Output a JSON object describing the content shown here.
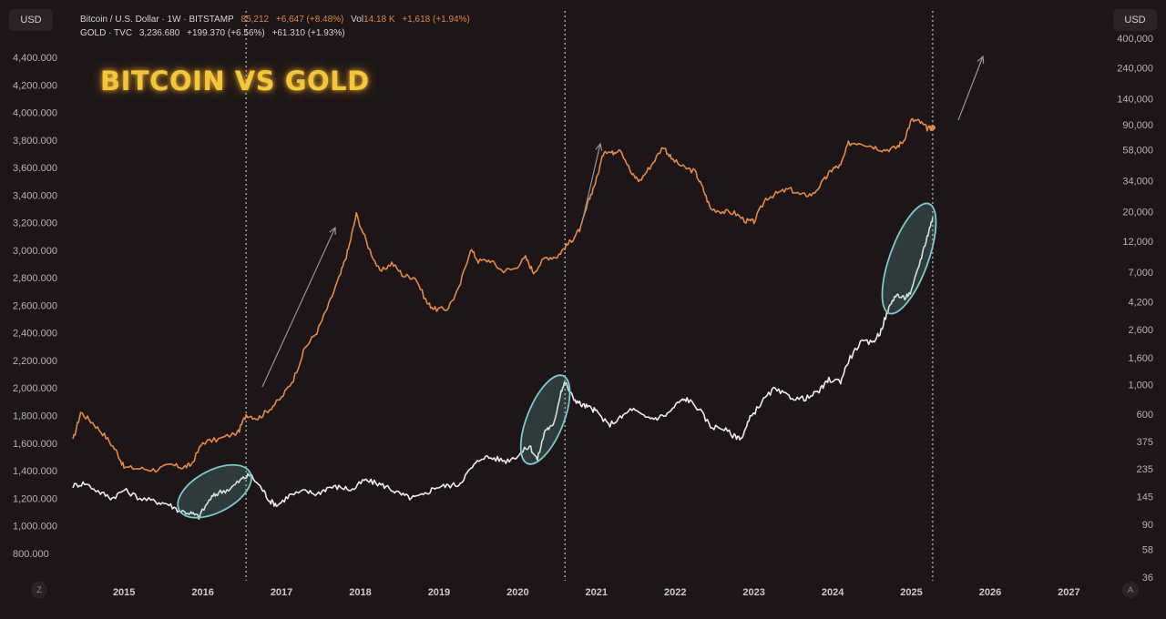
{
  "title": "BITCOIN VS GOLD",
  "header": {
    "btc_symbol": "Bitcoin / U.S. Dollar · 1W · BITSTAMP",
    "btc_price": "85,212",
    "btc_change": "+6,647 (+8.48%)",
    "vol_label": "Vol",
    "vol_value": "14.18 K",
    "vol_change": "+1,618 (+1.94%)",
    "gold_symbol": "GOLD · TVC",
    "gold_price": "3,236.680",
    "gold_change": "+199.370 (+6.56%)",
    "gold_change2": "+61.310 (+1.93%)"
  },
  "left_unit": "USD",
  "right_unit": "USD",
  "corner_left": "Z",
  "corner_right": "A",
  "colors": {
    "background": "#1d1517",
    "bitcoin": "#e08a4c",
    "gold": "#efe9ea",
    "title": "#f3c63f",
    "highlight_ellipse": "#7fc9c9",
    "grid_marker": "#cfcfcf"
  },
  "chart_data": {
    "type": "line",
    "x_ticks": [
      "2015",
      "2016",
      "2017",
      "2018",
      "2019",
      "2020",
      "2021",
      "2022",
      "2023",
      "2024",
      "2025",
      "2026",
      "2027"
    ],
    "x_range": [
      2014.35,
      2027.4
    ],
    "left_axis": {
      "label": "USD",
      "ticks": [
        "4,400.000",
        "4,200.000",
        "4,000.000",
        "3,800.000",
        "3,600.000",
        "3,400.000",
        "3,200.000",
        "3,000.000",
        "2,800.000",
        "2,600.000",
        "2,400.000",
        "2,200.000",
        "2,000.000",
        "1,800.000",
        "1,600.000",
        "1,400.000",
        "1,200.000",
        "1,000.000",
        "800.000"
      ],
      "tick_values": [
        4400,
        4200,
        4000,
        3800,
        3600,
        3400,
        3200,
        3000,
        2800,
        2600,
        2400,
        2200,
        2000,
        1800,
        1600,
        1400,
        1200,
        1000,
        800
      ],
      "range": [
        640,
        4500
      ],
      "scale": "linear"
    },
    "right_axis": {
      "label": "USD",
      "ticks": [
        "400,000",
        "240,000",
        "140,000",
        "90,000",
        "58,000",
        "34,000",
        "20,000",
        "12,000",
        "7,000",
        "4,200",
        "2,600",
        "1,600",
        "1,000",
        "600",
        "375",
        "235",
        "145",
        "90",
        "58",
        "36"
      ],
      "tick_values": [
        400000,
        240000,
        140000,
        90000,
        58000,
        34000,
        20000,
        12000,
        7000,
        4200,
        2600,
        1600,
        1000,
        600,
        375,
        235,
        145,
        90,
        58,
        36
      ],
      "scale": "log"
    },
    "series": [
      {
        "name": "Bitcoin / U.S. Dollar",
        "axis": "right",
        "color": "#e08a4c",
        "x": [
          2014.35,
          2014.45,
          2014.6,
          2014.75,
          2014.9,
          2015.0,
          2015.2,
          2015.4,
          2015.6,
          2015.75,
          2015.85,
          2016.0,
          2016.2,
          2016.45,
          2016.55,
          2016.7,
          2016.85,
          2017.0,
          2017.15,
          2017.3,
          2017.45,
          2017.6,
          2017.75,
          2017.85,
          2017.95,
          2018.1,
          2018.25,
          2018.4,
          2018.55,
          2018.7,
          2018.85,
          2018.95,
          2019.1,
          2019.25,
          2019.4,
          2019.5,
          2019.65,
          2019.8,
          2019.95,
          2020.1,
          2020.2,
          2020.35,
          2020.5,
          2020.6,
          2020.7,
          2020.8,
          2020.9,
          2021.0,
          2021.1,
          2021.2,
          2021.3,
          2021.45,
          2021.55,
          2021.7,
          2021.85,
          2021.95,
          2022.1,
          2022.25,
          2022.35,
          2022.45,
          2022.6,
          2022.75,
          2022.9,
          2023.0,
          2023.15,
          2023.3,
          2023.45,
          2023.6,
          2023.75,
          2023.9,
          2024.0,
          2024.1,
          2024.2,
          2024.35,
          2024.5,
          2024.65,
          2024.8,
          2024.9,
          2025.0,
          2025.1,
          2025.2,
          2025.27
        ],
        "y": [
          380,
          620,
          520,
          420,
          320,
          240,
          235,
          230,
          250,
          240,
          250,
          370,
          390,
          440,
          600,
          560,
          660,
          800,
          1100,
          1900,
          2500,
          4000,
          6800,
          10500,
          19000,
          11000,
          7000,
          8200,
          6600,
          6400,
          4100,
          3700,
          3700,
          5200,
          10500,
          8500,
          8600,
          7200,
          7400,
          9000,
          7000,
          9000,
          9200,
          10800,
          12500,
          15000,
          24000,
          35000,
          58000,
          55000,
          60000,
          38000,
          34000,
          45000,
          62000,
          50000,
          43000,
          40000,
          30000,
          21000,
          20000,
          19500,
          17000,
          16800,
          25000,
          27500,
          29500,
          26500,
          27000,
          35000,
          42000,
          44000,
          65000,
          66000,
          62000,
          58000,
          60000,
          68000,
          97000,
          95000,
          84000,
          85212
        ]
      },
      {
        "name": "GOLD",
        "axis": "left",
        "color": "#efe9ea",
        "x": [
          2014.35,
          2014.5,
          2014.7,
          2014.85,
          2015.0,
          2015.2,
          2015.4,
          2015.55,
          2015.7,
          2015.85,
          2015.95,
          2016.1,
          2016.2,
          2016.35,
          2016.5,
          2016.6,
          2016.75,
          2016.85,
          2016.95,
          2017.1,
          2017.3,
          2017.45,
          2017.6,
          2017.75,
          2017.9,
          2018.05,
          2018.2,
          2018.35,
          2018.5,
          2018.65,
          2018.8,
          2018.95,
          2019.1,
          2019.25,
          2019.4,
          2019.55,
          2019.7,
          2019.85,
          2020.0,
          2020.15,
          2020.25,
          2020.35,
          2020.45,
          2020.55,
          2020.6,
          2020.7,
          2020.8,
          2020.9,
          2021.0,
          2021.15,
          2021.3,
          2021.45,
          2021.6,
          2021.75,
          2021.9,
          2022.05,
          2022.15,
          2022.3,
          2022.45,
          2022.6,
          2022.75,
          2022.85,
          2022.95,
          2023.1,
          2023.25,
          2023.4,
          2023.55,
          2023.7,
          2023.85,
          2023.95,
          2024.1,
          2024.2,
          2024.35,
          2024.5,
          2024.6,
          2024.7,
          2024.8,
          2024.9,
          2025.0,
          2025.1,
          2025.2,
          2025.27
        ],
        "y": [
          1290,
          1310,
          1240,
          1200,
          1260,
          1200,
          1175,
          1160,
          1110,
          1090,
          1065,
          1200,
          1240,
          1270,
          1340,
          1370,
          1270,
          1180,
          1150,
          1220,
          1250,
          1230,
          1280,
          1280,
          1260,
          1330,
          1310,
          1280,
          1230,
          1200,
          1220,
          1280,
          1290,
          1300,
          1410,
          1500,
          1490,
          1470,
          1510,
          1580,
          1480,
          1700,
          1720,
          1980,
          2040,
          1930,
          1880,
          1860,
          1830,
          1730,
          1780,
          1850,
          1790,
          1780,
          1810,
          1900,
          1920,
          1850,
          1720,
          1710,
          1650,
          1640,
          1780,
          1900,
          1990,
          1950,
          1920,
          1930,
          1990,
          2060,
          2050,
          2200,
          2330,
          2330,
          2400,
          2560,
          2680,
          2650,
          2700,
          2900,
          3100,
          3236
        ]
      }
    ],
    "vertical_markers": [
      2016.55,
      2020.6,
      2025.27
    ],
    "highlights": [
      {
        "x": 2016.15,
        "y": 1250
      },
      {
        "x": 2020.35,
        "y": 1770
      },
      {
        "x": 2024.97,
        "y": 2940
      }
    ],
    "trend_arrows": 4
  }
}
